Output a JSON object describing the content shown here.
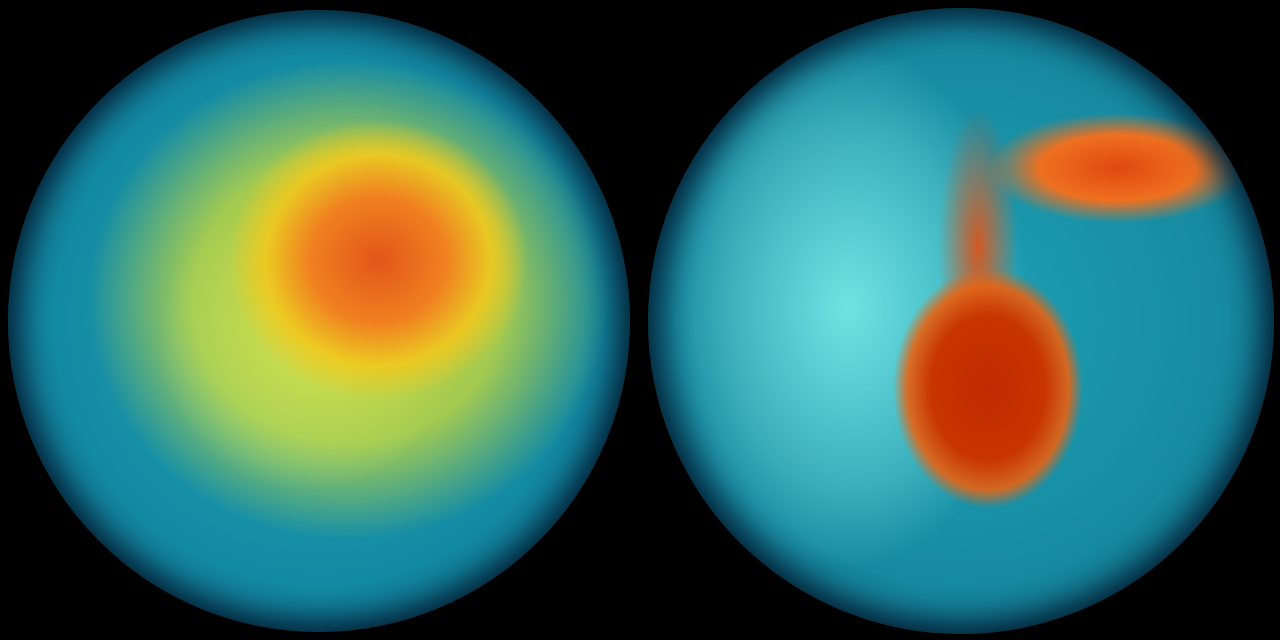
{
  "scene": {
    "globes": [
      {
        "view": "southern-hemisphere",
        "colors": {
          "core": "#e2561a",
          "ring": "#e8d83a",
          "background": "#1fa3b5"
        }
      },
      {
        "view": "northern-hemisphere",
        "colors": {
          "core": "#c02a00",
          "plume": "#e04810",
          "background": "#1ea0b4"
        }
      }
    ],
    "background_color": "#000000"
  }
}
